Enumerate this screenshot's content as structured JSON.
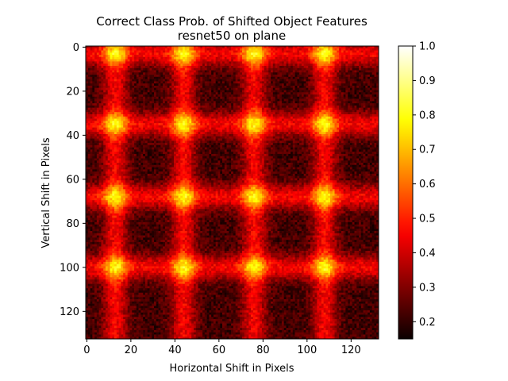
{
  "chart_data": {
    "type": "heatmap",
    "title": "Correct Class Prob. of Shifted Object Features",
    "subtitle": "resnet50 on plane",
    "xlabel": "Horizontal Shift in Pixels",
    "ylabel": "Vertical Shift in Pixels",
    "x_ticks": [
      0,
      20,
      40,
      60,
      80,
      100,
      120
    ],
    "y_ticks": [
      0,
      20,
      40,
      60,
      80,
      100,
      120
    ],
    "x_tick_labels": [
      "0",
      "20",
      "40",
      "60",
      "80",
      "100",
      "120"
    ],
    "y_tick_labels": [
      "0",
      "20",
      "40",
      "60",
      "80",
      "100",
      "120"
    ],
    "xlim": [
      -0.5,
      132.5
    ],
    "ylim": [
      132.5,
      -0.5
    ],
    "grid_cells": 133,
    "colormap": "hot",
    "color_range": [
      0.15,
      1.0
    ],
    "colorbar_ticks": [
      0.2,
      0.3,
      0.4,
      0.5,
      0.6,
      0.7,
      0.8,
      0.9,
      1.0
    ],
    "colorbar_tick_labels": [
      "0.2",
      "0.3",
      "0.4",
      "0.5",
      "0.6",
      "0.7",
      "0.8",
      "0.9",
      "1.0"
    ],
    "pattern": {
      "period_x": 32,
      "period_y": 32,
      "peak_x": [
        13,
        44,
        76,
        108
      ],
      "peak_y": [
        3,
        35,
        68,
        100
      ],
      "peak_value": 0.85,
      "trough_value": 0.22,
      "mean_value": 0.48
    },
    "grid": false,
    "colorbar_position": "right"
  }
}
